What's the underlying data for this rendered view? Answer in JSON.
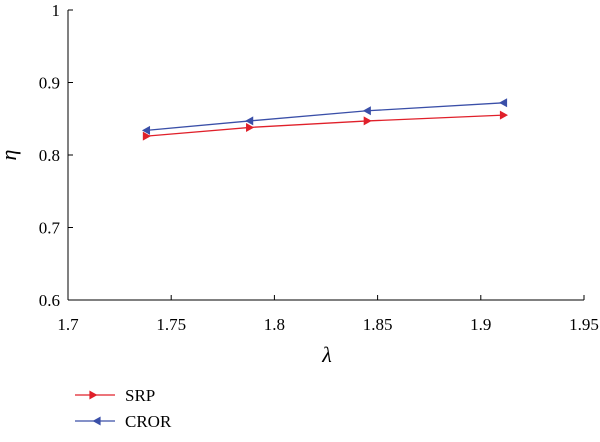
{
  "chart_data": {
    "type": "line",
    "title": "",
    "xlabel": "λ",
    "ylabel": "η",
    "xlim": [
      1.7,
      1.95
    ],
    "ylim": [
      0.6,
      1.0
    ],
    "xticks": [
      1.7,
      1.75,
      1.8,
      1.85,
      1.9,
      1.95
    ],
    "xtick_labels": [
      "1.7",
      "1.75",
      "1.8",
      "1.85",
      "1.9",
      "1.95"
    ],
    "yticks": [
      0.6,
      0.7,
      0.8,
      0.9,
      1.0
    ],
    "ytick_labels": [
      "0.6",
      "0.7",
      "0.8",
      "0.9",
      "1"
    ],
    "grid": false,
    "legend_position": "bottom-left",
    "series": [
      {
        "name": "SRP",
        "color": "#e0202a",
        "marker": "triangle-right",
        "x": [
          1.738,
          1.788,
          1.845,
          1.911
        ],
        "y": [
          0.826,
          0.838,
          0.847,
          0.855
        ]
      },
      {
        "name": "CROR",
        "color": "#3a4fa8",
        "marker": "triangle-left",
        "x": [
          1.738,
          1.788,
          1.845,
          1.911
        ],
        "y": [
          0.834,
          0.847,
          0.861,
          0.872
        ]
      }
    ]
  }
}
